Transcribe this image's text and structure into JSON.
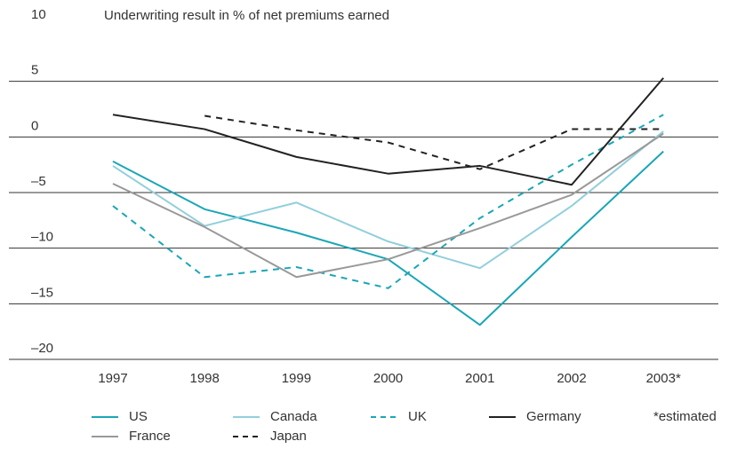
{
  "chart_data": {
    "type": "line",
    "title": "Underwriting result in % of net premiums earned",
    "categories": [
      "1997",
      "1998",
      "1999",
      "2000",
      "2001",
      "2002",
      "2003*"
    ],
    "note": "*estimated",
    "ylim": [
      -20,
      10
    ],
    "yticks": [
      10,
      5,
      0,
      {
        "value": -5,
        "label": "–5"
      },
      {
        "value": -10,
        "label": "–10"
      },
      {
        "value": -15,
        "label": "–15"
      },
      {
        "value": -20,
        "label": "–20"
      }
    ],
    "grid": true,
    "series": [
      {
        "name": "US",
        "color": "#1aa6b7",
        "dashed": false,
        "values": [
          -2.2,
          -6.5,
          -8.6,
          -11,
          -16.9,
          -9.0,
          -1.3
        ]
      },
      {
        "name": "Canada",
        "color": "#92cfdb",
        "dashed": false,
        "values": [
          -2.6,
          -8,
          -5.9,
          -9.4,
          -11.8,
          -6.2,
          0.5
        ]
      },
      {
        "name": "UK",
        "color": "#1aa6b7",
        "dashed": true,
        "values": [
          -6.2,
          -12.6,
          -11.7,
          -13.6,
          -7.3,
          -2.5,
          2.0
        ]
      },
      {
        "name": "Germany",
        "color": "#222222",
        "dashed": false,
        "values": [
          2.0,
          0.7,
          -1.8,
          -3.3,
          -2.6,
          -4.3,
          5.3
        ]
      },
      {
        "name": "France",
        "color": "#999999",
        "dashed": false,
        "values": [
          -4.2,
          -8.1,
          -12.6,
          -11,
          -8.2,
          -5.2,
          0.3
        ]
      },
      {
        "name": "Japan",
        "color": "#222222",
        "dashed": true,
        "values": [
          null,
          1.9,
          0.6,
          -0.5,
          -2.9,
          0.7,
          0.7
        ]
      }
    ]
  }
}
